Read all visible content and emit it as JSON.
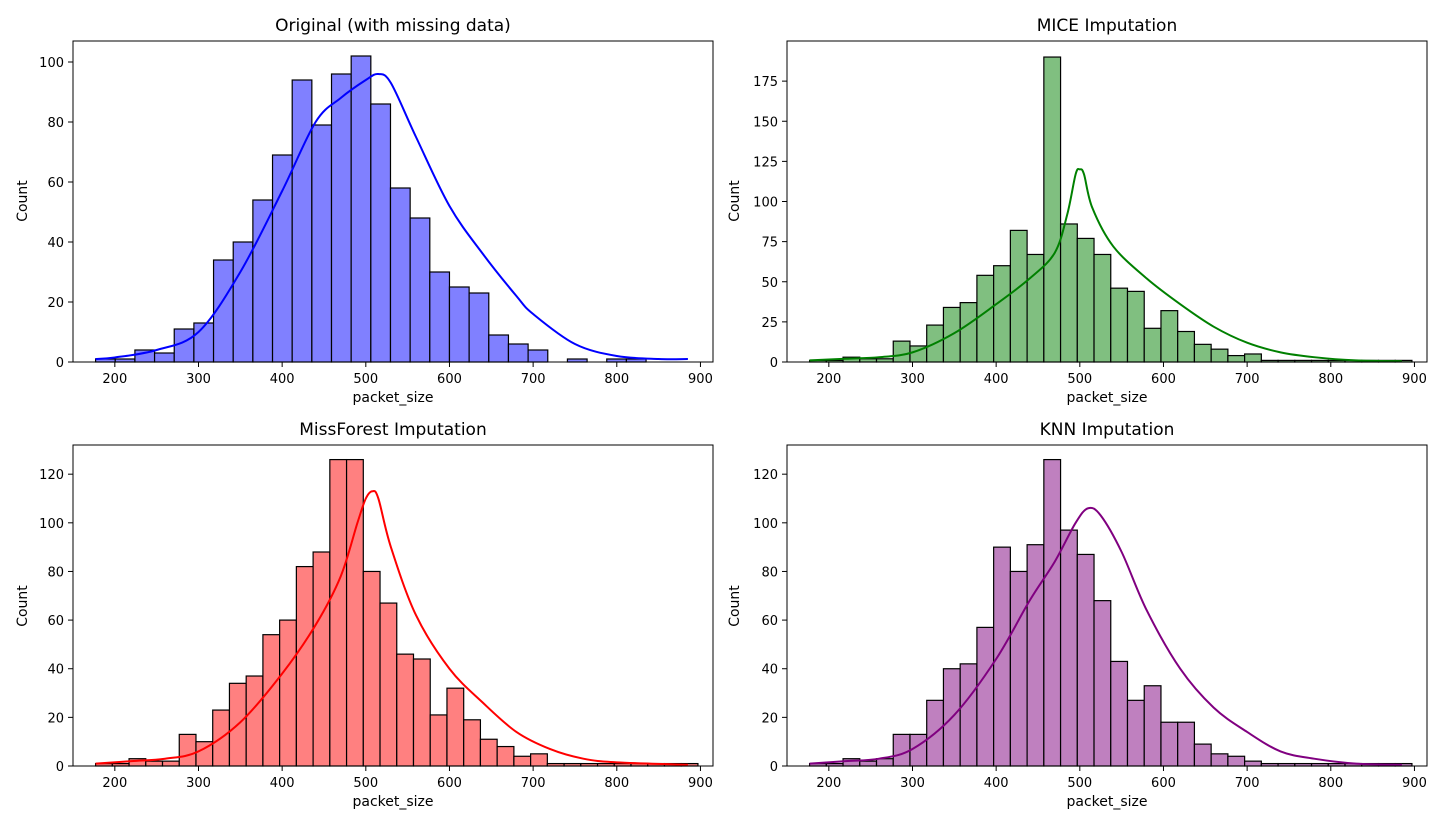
{
  "figure": {
    "background": "#ffffff"
  },
  "chart_data": [
    {
      "type": "bar",
      "title": "Original (with missing data)",
      "xlabel": "packet_size",
      "ylabel": "Count",
      "color": "#0000ff",
      "bar_fill": "#8080ff",
      "bin_start": 177,
      "bin_width": 23.5,
      "values": [
        1,
        1,
        4,
        3,
        11,
        13,
        34,
        40,
        54,
        69,
        94,
        79,
        96,
        102,
        86,
        58,
        48,
        30,
        25,
        23,
        9,
        6,
        4,
        0,
        1,
        0,
        1,
        1
      ],
      "kde": [
        [
          177,
          1
        ],
        [
          200,
          1.5
        ],
        [
          250,
          4
        ],
        [
          300,
          10
        ],
        [
          350,
          30
        ],
        [
          400,
          57
        ],
        [
          440,
          80
        ],
        [
          470,
          88
        ],
        [
          500,
          94
        ],
        [
          515,
          96
        ],
        [
          530,
          93
        ],
        [
          560,
          75
        ],
        [
          600,
          52
        ],
        [
          640,
          36
        ],
        [
          680,
          22
        ],
        [
          700,
          16
        ],
        [
          750,
          6
        ],
        [
          800,
          2
        ],
        [
          850,
          1
        ],
        [
          885,
          1
        ]
      ],
      "xlim": [
        150,
        915
      ],
      "ylim": [
        0,
        107
      ],
      "xticks": [
        200,
        300,
        400,
        500,
        600,
        700,
        800,
        900
      ],
      "yticks": [
        0,
        20,
        40,
        60,
        80,
        100
      ]
    },
    {
      "type": "bar",
      "title": "MICE Imputation",
      "xlabel": "packet_size",
      "ylabel": "Count",
      "color": "#008000",
      "bar_fill": "#80bf80",
      "bin_start": 177,
      "bin_width": 20,
      "values": [
        1,
        1,
        3,
        2,
        2,
        13,
        10,
        23,
        34,
        37,
        54,
        60,
        82,
        67,
        190,
        86,
        77,
        67,
        46,
        44,
        21,
        32,
        19,
        11,
        8,
        4,
        5,
        1,
        1,
        1,
        1,
        1,
        1,
        1,
        1,
        1
      ],
      "kde": [
        [
          177,
          1
        ],
        [
          220,
          2
        ],
        [
          260,
          3
        ],
        [
          300,
          6
        ],
        [
          350,
          18
        ],
        [
          400,
          36
        ],
        [
          440,
          52
        ],
        [
          470,
          68
        ],
        [
          485,
          92
        ],
        [
          495,
          117
        ],
        [
          500,
          120
        ],
        [
          505,
          117
        ],
        [
          515,
          96
        ],
        [
          540,
          72
        ],
        [
          580,
          52
        ],
        [
          620,
          36
        ],
        [
          660,
          22
        ],
        [
          700,
          12
        ],
        [
          740,
          6
        ],
        [
          780,
          3
        ],
        [
          830,
          1
        ],
        [
          885,
          0.5
        ]
      ],
      "xlim": [
        150,
        915
      ],
      "ylim": [
        0,
        200
      ],
      "xticks": [
        200,
        300,
        400,
        500,
        600,
        700,
        800,
        900
      ],
      "yticks": [
        0,
        25,
        50,
        75,
        100,
        125,
        150,
        175
      ]
    },
    {
      "type": "bar",
      "title": "MissForest Imputation",
      "xlabel": "packet_size",
      "ylabel": "Count",
      "color": "#ff0000",
      "bar_fill": "#ff8080",
      "bin_start": 177,
      "bin_width": 20,
      "values": [
        1,
        1,
        3,
        2,
        2,
        13,
        10,
        23,
        34,
        37,
        54,
        60,
        82,
        88,
        126,
        126,
        80,
        67,
        46,
        44,
        21,
        32,
        19,
        11,
        8,
        4,
        5,
        1,
        1,
        1,
        1,
        1,
        1,
        1,
        1,
        1
      ],
      "kde": [
        [
          177,
          1
        ],
        [
          220,
          2
        ],
        [
          260,
          3
        ],
        [
          300,
          6
        ],
        [
          350,
          18
        ],
        [
          400,
          38
        ],
        [
          440,
          58
        ],
        [
          470,
          78
        ],
        [
          490,
          100
        ],
        [
          500,
          110
        ],
        [
          508,
          113
        ],
        [
          515,
          110
        ],
        [
          530,
          90
        ],
        [
          560,
          62
        ],
        [
          600,
          40
        ],
        [
          640,
          26
        ],
        [
          680,
          14
        ],
        [
          720,
          7
        ],
        [
          760,
          3
        ],
        [
          800,
          1.5
        ],
        [
          885,
          0.5
        ]
      ],
      "xlim": [
        150,
        915
      ],
      "ylim": [
        0,
        132
      ],
      "xticks": [
        200,
        300,
        400,
        500,
        600,
        700,
        800,
        900
      ],
      "yticks": [
        0,
        20,
        40,
        60,
        80,
        100,
        120
      ]
    },
    {
      "type": "bar",
      "title": "KNN Imputation",
      "xlabel": "packet_size",
      "ylabel": "Count",
      "color": "#800080",
      "bar_fill": "#bf80bf",
      "bin_start": 177,
      "bin_width": 20,
      "values": [
        1,
        1,
        3,
        2,
        3,
        13,
        13,
        27,
        40,
        42,
        57,
        90,
        80,
        91,
        126,
        97,
        87,
        68,
        43,
        27,
        33,
        18,
        18,
        9,
        5,
        4,
        2,
        1,
        1,
        1,
        1,
        1,
        1,
        1,
        1,
        1
      ],
      "kde": [
        [
          177,
          1
        ],
        [
          220,
          2
        ],
        [
          260,
          3
        ],
        [
          300,
          7
        ],
        [
          350,
          21
        ],
        [
          400,
          44
        ],
        [
          440,
          68
        ],
        [
          470,
          84
        ],
        [
          495,
          100
        ],
        [
          510,
          106
        ],
        [
          525,
          103
        ],
        [
          550,
          88
        ],
        [
          580,
          64
        ],
        [
          620,
          40
        ],
        [
          660,
          24
        ],
        [
          700,
          14
        ],
        [
          740,
          6
        ],
        [
          780,
          3
        ],
        [
          830,
          1
        ],
        [
          885,
          0.5
        ]
      ],
      "xlim": [
        150,
        915
      ],
      "ylim": [
        0,
        132
      ],
      "xticks": [
        200,
        300,
        400,
        500,
        600,
        700,
        800,
        900
      ],
      "yticks": [
        0,
        20,
        40,
        60,
        80,
        100,
        120
      ]
    }
  ]
}
